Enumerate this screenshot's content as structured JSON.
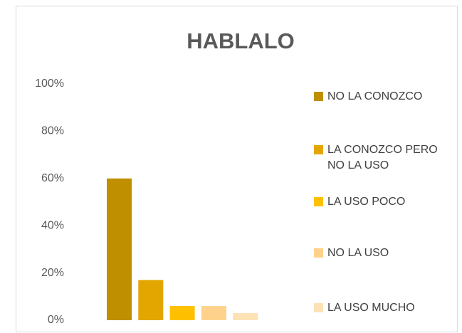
{
  "chart_data": {
    "type": "bar",
    "title": "HABLALO",
    "categories": [
      null
    ],
    "series": [
      {
        "name": "NO LA CONOZCO",
        "color": "#bf8f00",
        "values": [
          60
        ]
      },
      {
        "name": "LA CONOZCO PERO NO LA USO",
        "color": "#e3a600",
        "values": [
          17
        ]
      },
      {
        "name": "LA USO POCO",
        "color": "#ffc000",
        "values": [
          6
        ]
      },
      {
        "name": "NO LA USO",
        "color": "#ffd28c",
        "values": [
          6
        ]
      },
      {
        "name": "LA USO MUCHO",
        "color": "#fde2b6",
        "values": [
          3
        ]
      }
    ],
    "ylim": [
      0,
      100
    ],
    "yticks": [
      {
        "value": 0,
        "label": "0%"
      },
      {
        "value": 20,
        "label": "20%"
      },
      {
        "value": 40,
        "label": "40%"
      },
      {
        "value": 60,
        "label": "60%"
      },
      {
        "value": 80,
        "label": "80%"
      },
      {
        "value": 100,
        "label": "100%"
      }
    ],
    "grid": false,
    "legend": "right"
  }
}
